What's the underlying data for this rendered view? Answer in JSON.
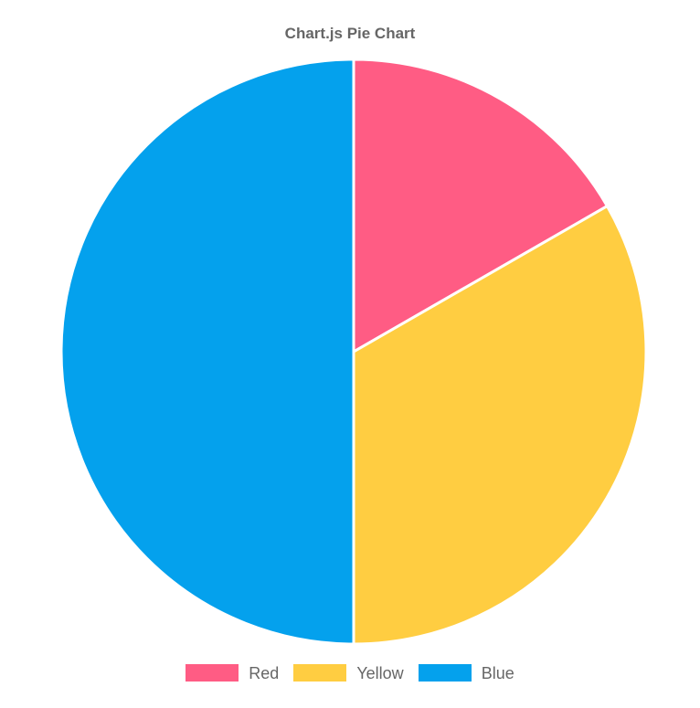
{
  "title": "Chart.js Pie Chart",
  "colors": {
    "title_text": "#666666",
    "legend_text": "#666666",
    "slice_border": "#ffffff",
    "background": "#ffffff"
  },
  "chart_data": {
    "type": "pie",
    "title": "Chart.js Pie Chart",
    "labels": [
      "Red",
      "Yellow",
      "Blue"
    ],
    "values": [
      16.7,
      33.3,
      50.0
    ],
    "unit": "percent",
    "angles_deg": [
      60,
      120,
      180
    ],
    "colors": [
      "#FF5C84",
      "#FFCD41",
      "#04A1ED"
    ],
    "start_angle": "top",
    "direction": "clockwise",
    "legend_position": "bottom",
    "legend_entries": [
      "Red",
      "Yellow",
      "Blue"
    ]
  }
}
